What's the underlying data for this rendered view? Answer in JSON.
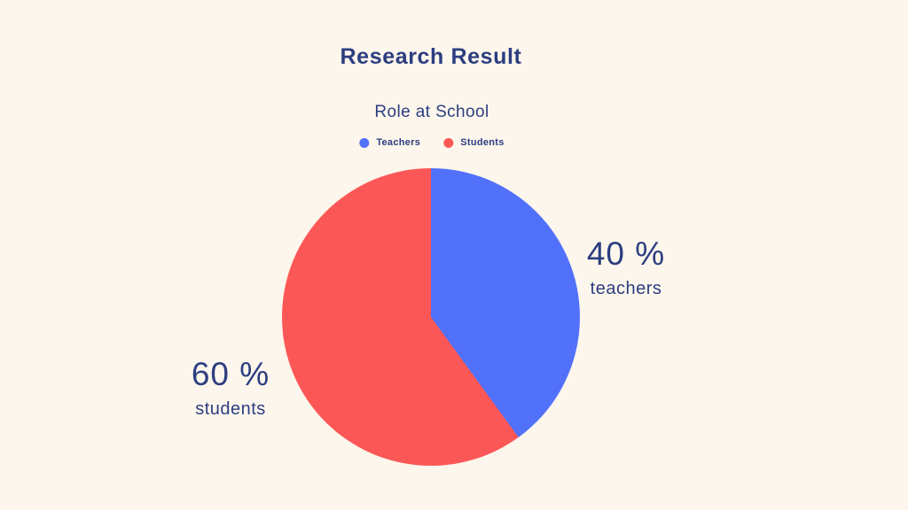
{
  "page": {
    "background": "#FDF6EC",
    "text_color": "#2C3E80"
  },
  "title": "Research Result",
  "chart_data": {
    "type": "pie",
    "title": "Role at School",
    "labels": [
      "Teachers",
      "Students"
    ],
    "values": [
      40,
      60
    ],
    "unit": "%",
    "colors": [
      "#5271FB",
      "#FC5757"
    ],
    "start_angle_deg": 0,
    "direction": "clockwise",
    "legend_position": "top",
    "annotations": [
      {
        "value_text": "40 %",
        "label": "teachers",
        "side": "right"
      },
      {
        "value_text": "60 %",
        "label": "students",
        "side": "left"
      }
    ]
  }
}
